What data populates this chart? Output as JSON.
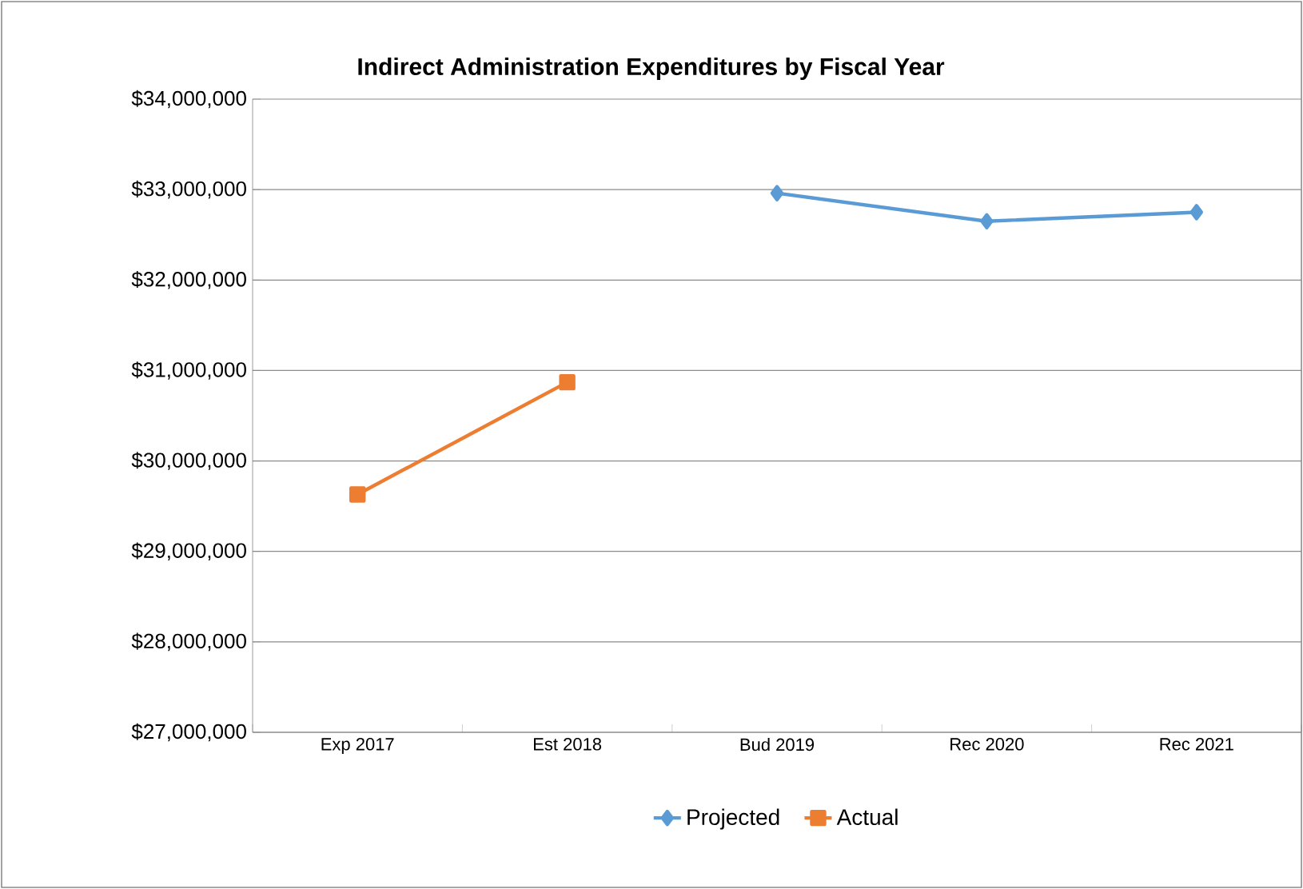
{
  "chart_data": {
    "type": "line",
    "title": "Indirect Administration Expenditures by Fiscal Year",
    "categories": [
      "Exp 2017",
      "Est 2018",
      "Bud 2019",
      "Rec 2020",
      "Rec 2021"
    ],
    "series": [
      {
        "name": "Projected",
        "color": "#5b9bd5",
        "marker": "diamond",
        "values": [
          null,
          null,
          32960000,
          32650000,
          32750000
        ]
      },
      {
        "name": "Actual",
        "color": "#ed7d31",
        "marker": "square",
        "values": [
          29630000,
          30870000,
          null,
          null,
          null
        ]
      }
    ],
    "ylim": [
      27000000,
      34000000
    ],
    "yticks": [
      {
        "value": 27000000,
        "label": "$27,000,000"
      },
      {
        "value": 28000000,
        "label": "$28,000,000"
      },
      {
        "value": 29000000,
        "label": "$29,000,000"
      },
      {
        "value": 30000000,
        "label": "$30,000,000"
      },
      {
        "value": 31000000,
        "label": "$31,000,000"
      },
      {
        "value": 32000000,
        "label": "$32,000,000"
      },
      {
        "value": 33000000,
        "label": "$33,000,000"
      },
      {
        "value": 34000000,
        "label": "$34,000,000"
      }
    ],
    "grid": "y",
    "legend": "bottom",
    "line_style": "solid"
  }
}
